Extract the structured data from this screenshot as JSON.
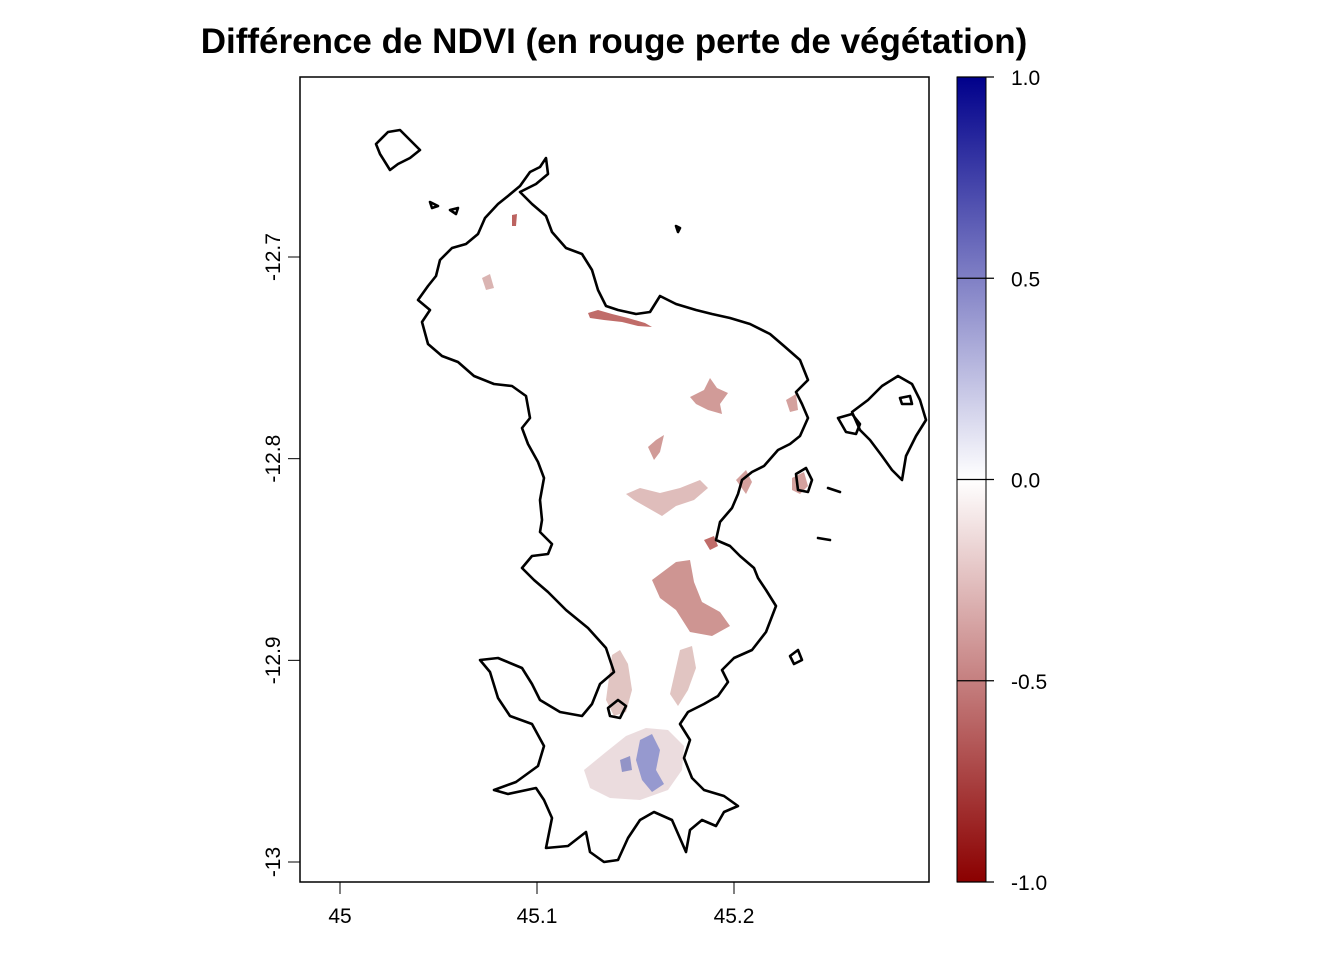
{
  "title": "Différence de NDVI (en rouge perte de végétation)",
  "x_axis": {
    "ticks": [
      45,
      45.1,
      45.2
    ],
    "tick_labels": [
      "45",
      "45.1",
      "45.2"
    ]
  },
  "y_axis": {
    "ticks": [
      -12.7,
      -12.8,
      -12.9,
      -13.0
    ],
    "tick_labels": [
      "-12.7",
      "-12.8",
      "-12.9",
      "-13"
    ]
  },
  "colorbar": {
    "ticks": [
      1.0,
      0.5,
      0.0,
      -0.5,
      -1.0
    ],
    "tick_labels": [
      "1.0",
      "0.5",
      "0.0",
      "-0.5",
      "-1.0"
    ],
    "colors": {
      "max": "#00008b",
      "mid": "#ffffff",
      "min": "#8b0000"
    }
  },
  "colors": {
    "loss": "#b5524f",
    "gain": "#3a4bb0",
    "outline": "#000000"
  }
}
